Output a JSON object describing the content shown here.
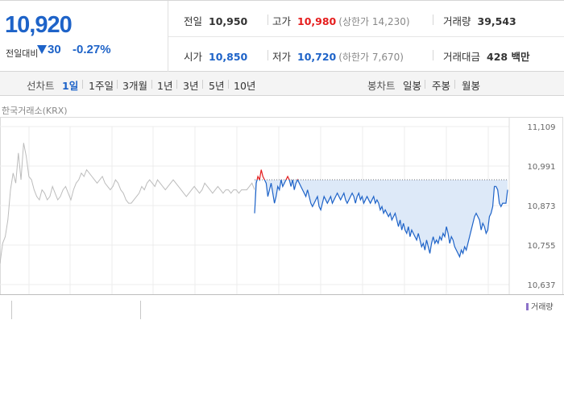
{
  "quote": {
    "price": "10,920",
    "change_label": "전일대비",
    "change": "30",
    "change_pct": "-0.27%",
    "prev_close_label": "전일",
    "prev_close": "10,950",
    "high_label": "고가",
    "high": "10,980",
    "upper_limit": "(상한가 14,230)",
    "volume_label": "거래량",
    "volume": "39,543",
    "open_label": "시가",
    "open": "10,850",
    "low_label": "저가",
    "low": "10,720",
    "lower_limit": "(하한가 7,670)",
    "amount_label": "거래대금",
    "amount": "428 백만"
  },
  "tabs": {
    "line_label": "선차트",
    "periods": [
      "1일",
      "1주일",
      "3개월",
      "1년",
      "3년",
      "5년",
      "10년"
    ],
    "candle_label": "봉차트",
    "candles": [
      "일봉",
      "주봉",
      "월봉"
    ]
  },
  "market_label": "한국거래소(KRX)",
  "volume_legend": "거래량",
  "colors": {
    "up": "#e51d1d",
    "down": "#1e63c8",
    "grey_line": "#bcbcbc",
    "fill": "#dde9f8"
  },
  "chart_data": {
    "type": "line",
    "title": "",
    "y_ticks": [
      "11,109",
      "10,991",
      "10,873",
      "10,755",
      "10,637"
    ],
    "ylim": [
      10637,
      11109
    ],
    "grid": true,
    "reference_price": 10950,
    "series": [
      {
        "values": [
          10700,
          10760,
          10780,
          10830,
          10920,
          10970,
          10940,
          11030,
          10950,
          11060,
          11020,
          10960,
          10950,
          10920,
          10900,
          10890,
          10920,
          10910,
          10890,
          10900,
          10930,
          10910,
          10890,
          10900,
          10920,
          10930,
          10910,
          10890,
          10920,
          10940,
          10950,
          10970,
          10960,
          10980,
          10970,
          10960,
          10950,
          10940,
          10950,
          10960,
          10940,
          10930,
          10920,
          10930,
          10950,
          10940,
          10920,
          10910,
          10890,
          10880,
          10880,
          10890,
          10900,
          10910,
          10930,
          10920,
          10940,
          10950,
          10940,
          10930,
          10950,
          10940,
          10930,
          10920,
          10930,
          10940,
          10950,
          10940,
          10930,
          10920,
          10910,
          10900,
          10910,
          10920,
          10930,
          10920,
          10910,
          10920,
          10940,
          10930,
          10920,
          10910,
          10920,
          10930,
          10920,
          10910,
          10920,
          10920,
          10910,
          10920,
          10920,
          10910,
          10920,
          10920,
          10920,
          10930,
          10940,
          10920
        ]
      },
      {
        "values": [
          10850,
          10940,
          10960,
          10950,
          10980,
          10960,
          10950,
          10940,
          10900,
          10920,
          10940,
          10910,
          10880,
          10900,
          10930,
          10920,
          10950,
          10930,
          10940,
          10950,
          10960,
          10950,
          10930,
          10950,
          10920,
          10940,
          10950,
          10940,
          10930,
          10920,
          10910,
          10900,
          10920,
          10900,
          10880,
          10870,
          10880,
          10890,
          10900,
          10870,
          10860,
          10880,
          10900,
          10890,
          10880,
          10890,
          10900,
          10880,
          10890,
          10900,
          10910,
          10900,
          10890,
          10900,
          10910,
          10890,
          10880,
          10890,
          10900,
          10910,
          10900,
          10880,
          10900,
          10910,
          10890,
          10900,
          10880,
          10890,
          10900,
          10890,
          10880,
          10890,
          10900,
          10880,
          10890,
          10880,
          10860,
          10870,
          10850,
          10860,
          10850,
          10840,
          10850,
          10830,
          10840,
          10850,
          10830,
          10810,
          10830,
          10800,
          10820,
          10800,
          10790,
          10810,
          10780,
          10800,
          10790,
          10780,
          10770,
          10790,
          10770,
          10750,
          10760,
          10740,
          10770,
          10750,
          10730,
          10760,
          10780,
          10760,
          10770,
          10760,
          10780,
          10770,
          10790,
          10780,
          10810,
          10790,
          10760,
          10780,
          10770,
          10750,
          10740,
          10730,
          10720,
          10740,
          10730,
          10750,
          10740,
          10760,
          10780,
          10800,
          10820,
          10840,
          10850,
          10840,
          10830,
          10800,
          10820,
          10810,
          10790,
          10800,
          10840,
          10850,
          10870,
          10930,
          10930,
          10920,
          10880,
          10870,
          10880,
          10880,
          10880,
          10920
        ]
      }
    ]
  }
}
